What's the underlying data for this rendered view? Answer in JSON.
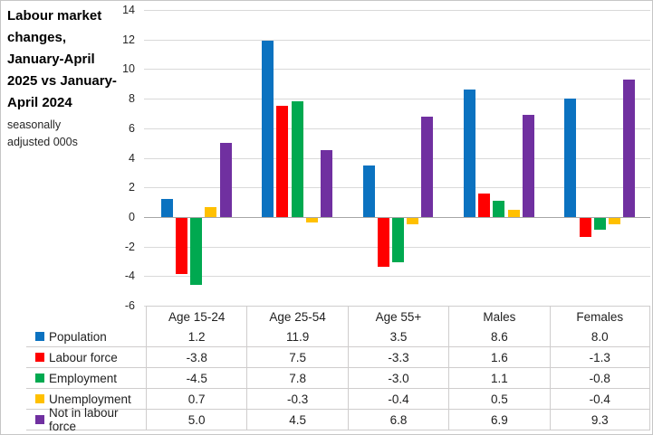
{
  "chart": {
    "title": "Labour market changes, January-April 2025 vs January-April 2024",
    "subtitle": "seasonally adjusted 000s"
  },
  "chart_data": {
    "type": "bar",
    "title": "Labour market changes, January-April 2025 vs January-April 2024",
    "subtitle": "seasonally adjusted 000s",
    "categories": [
      "Age 15-24",
      "Age 25-54",
      "Age 55+",
      "Males",
      "Females"
    ],
    "series": [
      {
        "name": "Population",
        "color": "#0b72c0",
        "values": [
          1.2,
          11.9,
          3.5,
          8.6,
          8.0
        ]
      },
      {
        "name": "Labour force",
        "color": "#ff0000",
        "values": [
          -3.8,
          7.5,
          -3.3,
          1.6,
          -1.3
        ]
      },
      {
        "name": "Employment",
        "color": "#00a950",
        "values": [
          -4.5,
          7.8,
          -3.0,
          1.1,
          -0.8
        ]
      },
      {
        "name": "Unemployment",
        "color": "#ffc000",
        "values": [
          0.7,
          -0.3,
          -0.4,
          0.5,
          -0.4
        ]
      },
      {
        "name": "Not in labour force",
        "color": "#7030a0",
        "values": [
          5.0,
          4.5,
          6.8,
          6.9,
          9.3
        ]
      }
    ],
    "ylim": [
      -6,
      14
    ],
    "yticks": [
      14,
      12,
      10,
      8,
      6,
      4,
      2,
      0,
      -2,
      -4,
      -6
    ],
    "value_decimals": 1,
    "grid": true,
    "grid_color": "#d9d9d9",
    "zero_axis_color": "#a6a6a6",
    "legend_position": "data-table-left",
    "data_table": true
  }
}
